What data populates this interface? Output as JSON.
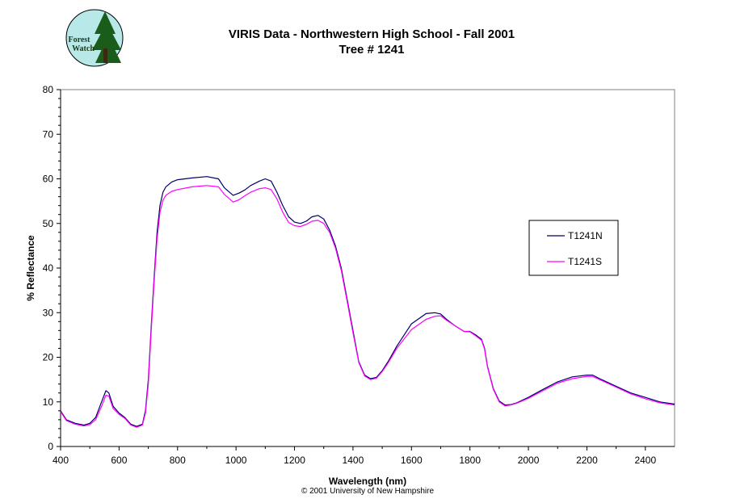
{
  "chart_data": {
    "type": "line",
    "title": "VIRIS Data - Northwestern High School - Fall 2001",
    "subtitle": "Tree # 1241",
    "xlabel": "Wavelength (nm)",
    "ylabel": "% Reflectance",
    "xlim": [
      400,
      2500
    ],
    "ylim": [
      0,
      80
    ],
    "xticks": [
      400,
      600,
      800,
      1000,
      1200,
      1400,
      1600,
      1800,
      2000,
      2200,
      2400
    ],
    "yticks": [
      0,
      10,
      20,
      30,
      40,
      50,
      60,
      70,
      80
    ],
    "grid": false,
    "legend_position": "right",
    "series": [
      {
        "name": "T1241N",
        "color": "#000066",
        "x": [
          400,
          420,
          450,
          480,
          500,
          520,
          540,
          555,
          565,
          580,
          600,
          620,
          640,
          660,
          680,
          690,
          700,
          710,
          720,
          730,
          740,
          750,
          760,
          780,
          800,
          850,
          900,
          940,
          960,
          990,
          1010,
          1030,
          1050,
          1080,
          1100,
          1120,
          1140,
          1160,
          1180,
          1200,
          1220,
          1240,
          1260,
          1280,
          1300,
          1320,
          1340,
          1360,
          1380,
          1400,
          1420,
          1440,
          1460,
          1480,
          1500,
          1520,
          1550,
          1600,
          1650,
          1680,
          1700,
          1720,
          1750,
          1780,
          1800,
          1820,
          1840,
          1850,
          1860,
          1880,
          1900,
          1920,
          1940,
          1960,
          2000,
          2050,
          2100,
          2150,
          2200,
          2220,
          2250,
          2300,
          2350,
          2400,
          2450,
          2500
        ],
        "y": [
          8.0,
          6.0,
          5.2,
          4.8,
          5.2,
          6.5,
          10.0,
          12.5,
          12.0,
          9.0,
          7.5,
          6.5,
          5.0,
          4.5,
          5.0,
          8.0,
          15.0,
          27.0,
          38.0,
          48.0,
          54.0,
          57.0,
          58.2,
          59.3,
          59.8,
          60.2,
          60.5,
          60.0,
          58.0,
          56.3,
          56.8,
          57.5,
          58.5,
          59.5,
          60.0,
          59.5,
          57.0,
          54.0,
          51.5,
          50.3,
          50.0,
          50.5,
          51.5,
          51.8,
          51.0,
          48.5,
          45.0,
          40.0,
          33.0,
          26.0,
          19.0,
          16.0,
          15.2,
          15.5,
          17.0,
          19.0,
          22.5,
          27.5,
          29.8,
          30.0,
          29.7,
          28.5,
          27.0,
          25.8,
          25.8,
          25.0,
          24.0,
          22.0,
          18.0,
          13.0,
          10.2,
          9.3,
          9.4,
          9.8,
          11.0,
          12.8,
          14.5,
          15.6,
          16.0,
          16.0,
          15.0,
          13.5,
          12.0,
          11.0,
          10.0,
          9.5
        ]
      },
      {
        "name": "T1241S",
        "color": "#ff00ff",
        "x": [
          400,
          420,
          450,
          480,
          500,
          520,
          540,
          555,
          565,
          580,
          600,
          620,
          640,
          660,
          680,
          690,
          700,
          710,
          720,
          730,
          740,
          750,
          760,
          780,
          800,
          850,
          900,
          940,
          960,
          990,
          1010,
          1030,
          1050,
          1080,
          1100,
          1120,
          1140,
          1160,
          1180,
          1200,
          1220,
          1240,
          1260,
          1280,
          1300,
          1320,
          1340,
          1360,
          1380,
          1400,
          1420,
          1440,
          1460,
          1480,
          1500,
          1520,
          1550,
          1600,
          1650,
          1680,
          1700,
          1720,
          1750,
          1780,
          1800,
          1820,
          1840,
          1850,
          1860,
          1880,
          1900,
          1920,
          1940,
          1960,
          2000,
          2050,
          2100,
          2150,
          2200,
          2220,
          2250,
          2300,
          2350,
          2400,
          2450,
          2500
        ],
        "y": [
          7.8,
          5.8,
          5.0,
          4.6,
          4.9,
          6.0,
          9.0,
          11.5,
          11.3,
          8.5,
          7.2,
          6.3,
          4.8,
          4.3,
          4.8,
          7.5,
          14.0,
          26.0,
          37.0,
          46.5,
          52.5,
          55.2,
          56.3,
          57.2,
          57.6,
          58.2,
          58.5,
          58.2,
          56.5,
          54.8,
          55.3,
          56.2,
          57.0,
          57.8,
          58.0,
          57.6,
          55.5,
          52.5,
          50.2,
          49.5,
          49.3,
          49.8,
          50.5,
          50.7,
          50.0,
          48.0,
          44.5,
          39.5,
          32.5,
          25.5,
          18.8,
          15.8,
          15.0,
          15.3,
          16.8,
          18.7,
          22.0,
          26.2,
          28.5,
          29.2,
          29.3,
          28.3,
          27.0,
          25.8,
          25.7,
          24.8,
          23.8,
          21.8,
          17.8,
          12.8,
          10.0,
          9.1,
          9.3,
          9.7,
          10.8,
          12.5,
          14.2,
          15.2,
          15.7,
          15.7,
          14.8,
          13.3,
          11.8,
          10.7,
          9.8,
          9.3
        ]
      }
    ]
  },
  "logo": {
    "line1": "Forest",
    "line2": "Watch",
    "bg_color": "#b8e8e8",
    "tree_color": "#1a5c1a"
  },
  "footer": {
    "copyright": "© 2001 University of New Hampshire"
  }
}
